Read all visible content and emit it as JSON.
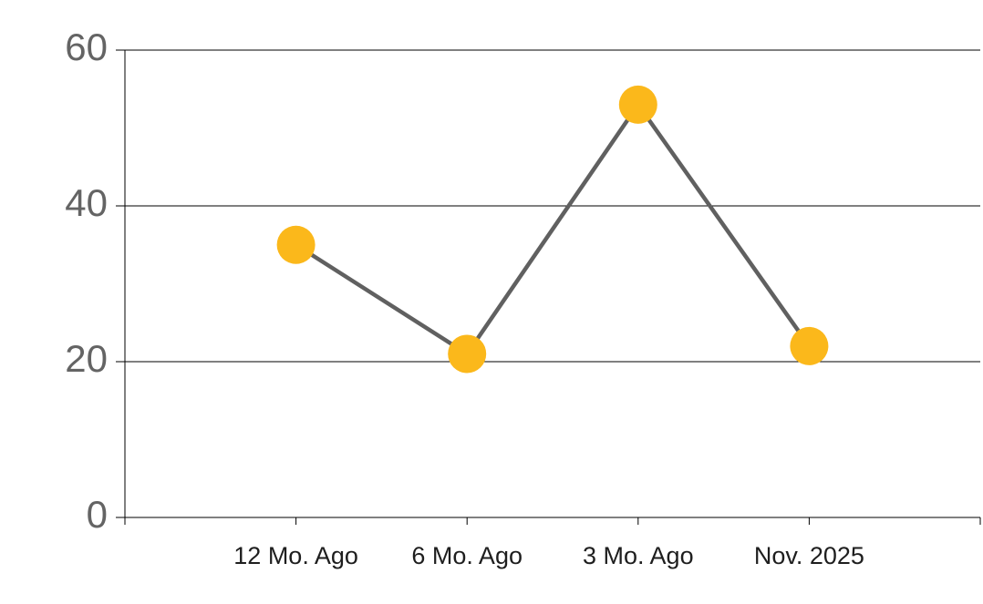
{
  "chart_data": {
    "type": "line",
    "categories": [
      "12 Mo. Ago",
      "6 Mo. Ago",
      "3 Mo. Ago",
      "Nov. 2025"
    ],
    "values": [
      35,
      21,
      53,
      22
    ],
    "color": "#606060",
    "marker_color": "#fbb81b",
    "ylim": [
      0,
      60
    ],
    "yticks": [
      0,
      20,
      40,
      60
    ],
    "grid": true
  }
}
